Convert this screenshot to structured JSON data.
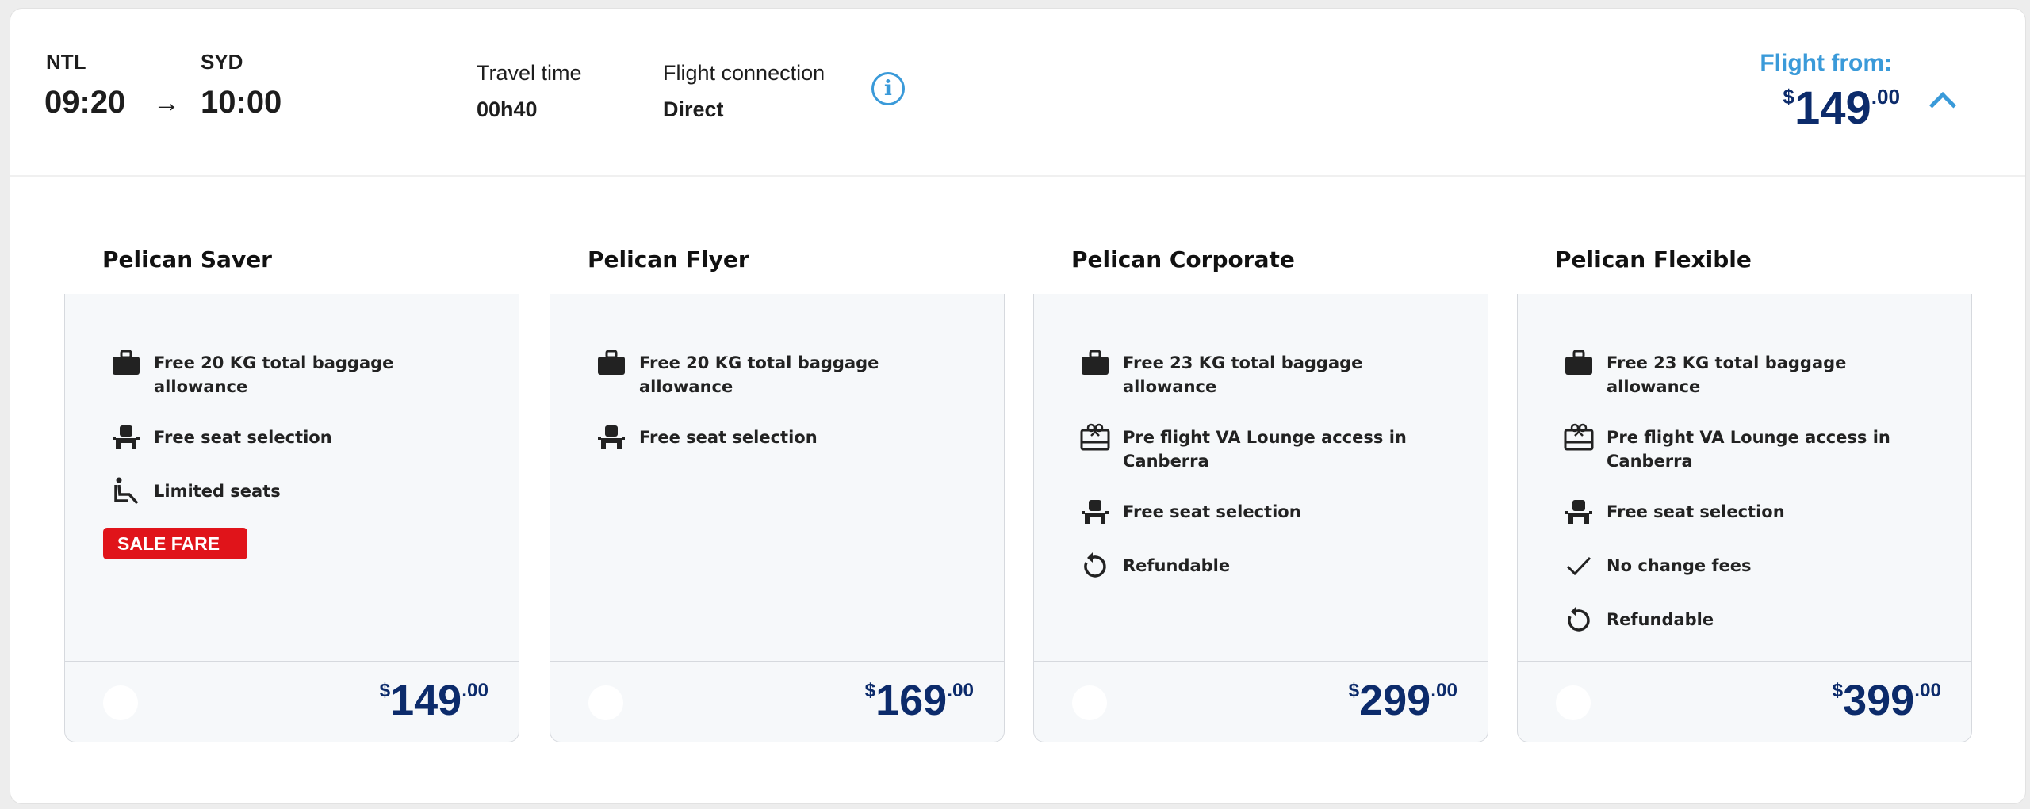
{
  "flight": {
    "origin": "NTL",
    "destination": "SYD",
    "departure": "09:20",
    "arrow": "→",
    "arrival": "10:00",
    "travel_time_label": "Travel time",
    "travel_time": "00h40",
    "connection_label": "Flight connection",
    "connection": "Direct",
    "info_icon": "info-circle-icon",
    "from_label": "Flight from:",
    "from_price": {
      "currency": "$",
      "whole": "149",
      "cents": ".00"
    },
    "toggle_icon": "chevron-up-icon"
  },
  "colors": {
    "accent": "#3a9ad9",
    "price": "#0c2b6b",
    "sale": "#e0141a",
    "card_bg": "#f6f8fa"
  },
  "fares": [
    {
      "name": "Pelican Saver",
      "features": [
        {
          "icon": "baggage-icon",
          "text": "Free 20 KG total baggage allowance"
        },
        {
          "icon": "seat-icon",
          "text": "Free seat selection"
        },
        {
          "icon": "reclined-passenger-icon",
          "text": "Limited seats"
        }
      ],
      "badge": "SALE FARE",
      "price": {
        "currency": "$",
        "whole": "149",
        "cents": ".00"
      }
    },
    {
      "name": "Pelican Flyer",
      "features": [
        {
          "icon": "baggage-icon",
          "text": "Free 20 KG total baggage allowance"
        },
        {
          "icon": "seat-icon",
          "text": "Free seat selection"
        }
      ],
      "price": {
        "currency": "$",
        "whole": "169",
        "cents": ".00"
      }
    },
    {
      "name": "Pelican Corporate",
      "features": [
        {
          "icon": "baggage-icon",
          "text": "Free 23 KG total baggage allowance"
        },
        {
          "icon": "lounge-icon",
          "text": "Pre flight VA Lounge access in Canberra"
        },
        {
          "icon": "seat-icon",
          "text": "Free seat selection"
        },
        {
          "icon": "refund-icon",
          "text": "Refundable"
        }
      ],
      "price": {
        "currency": "$",
        "whole": "299",
        "cents": ".00"
      }
    },
    {
      "name": "Pelican Flexible",
      "features": [
        {
          "icon": "baggage-icon",
          "text": "Free 23 KG total baggage allowance"
        },
        {
          "icon": "lounge-icon",
          "text": "Pre flight VA Lounge access in Canberra"
        },
        {
          "icon": "seat-icon",
          "text": "Free seat selection"
        },
        {
          "icon": "check-icon",
          "text": "No change fees"
        },
        {
          "icon": "refund-icon",
          "text": "Refundable"
        }
      ],
      "price": {
        "currency": "$",
        "whole": "399",
        "cents": ".00"
      }
    }
  ]
}
